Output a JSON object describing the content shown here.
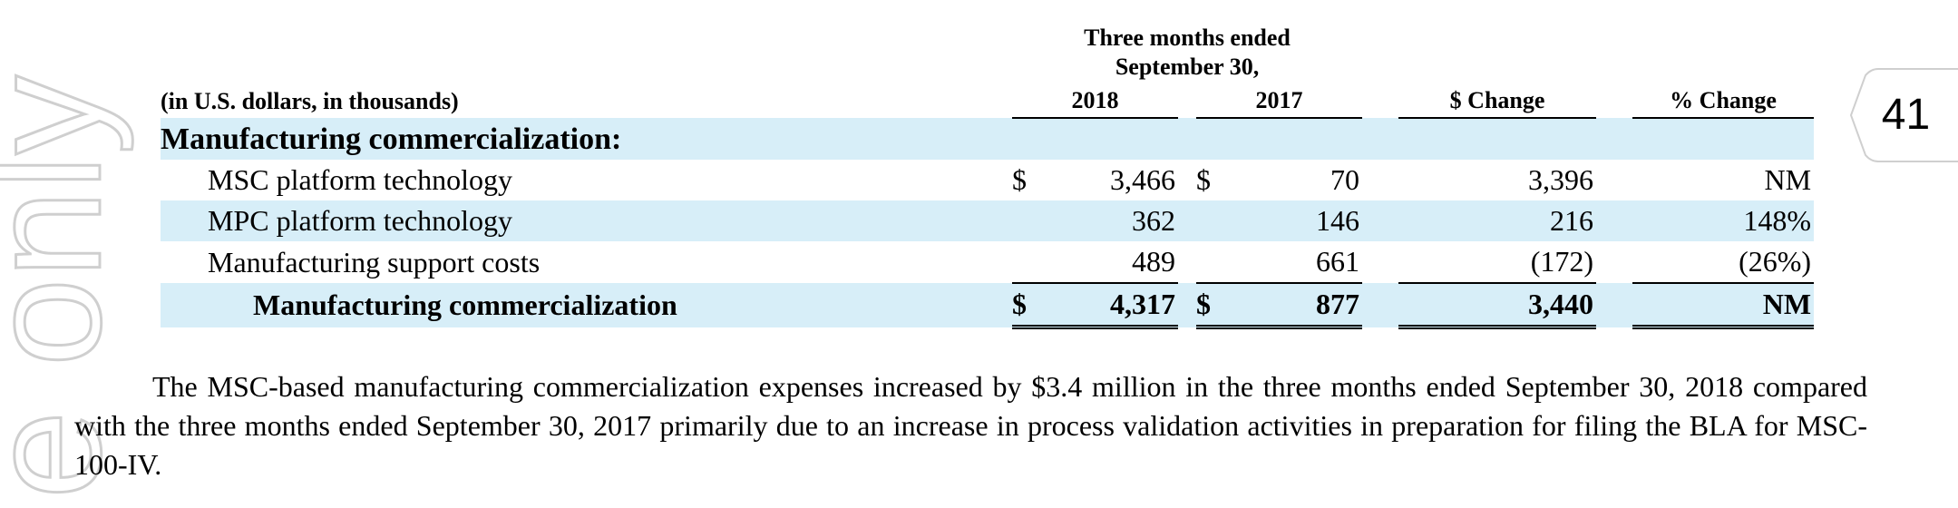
{
  "page_number": "41",
  "watermark_text": "e only",
  "table": {
    "header_group": [
      "Three months ended",
      "September 30,"
    ],
    "units_label": "(in U.S. dollars, in thousands)",
    "columns": [
      "2018",
      "2017",
      "$ Change",
      "% Change"
    ],
    "section_title": "Manufacturing commercialization:",
    "rows": [
      {
        "label": "MSC platform technology",
        "cur1": "$",
        "v2018": "3,466",
        "cur2": "$",
        "v2017": "70",
        "change": "3,396",
        "pct": "NM"
      },
      {
        "label": "MPC platform technology",
        "cur1": "",
        "v2018": "362",
        "cur2": "",
        "v2017": "146",
        "change": "216",
        "pct": "148%"
      },
      {
        "label": "Manufacturing support costs",
        "cur1": "",
        "v2018": "489",
        "cur2": "",
        "v2017": "661",
        "change": "(172)",
        "pct": "(26%)"
      }
    ],
    "total": {
      "label": "Manufacturing commercialization",
      "cur1": "$",
      "v2018": "4,317",
      "cur2": "$",
      "v2017": "877",
      "change": "3,440",
      "pct": "NM"
    }
  },
  "paragraph": "The MSC-based manufacturing commercialization expenses increased by $3.4 million in the three months ended September 30, 2018 compared with the three months ended September 30, 2017 primarily due to an increase in process validation activities in preparation for filing the BLA for MSC-100-IV.",
  "colors": {
    "row_shade": "#d7eef8",
    "watermark": "#cfcfcf"
  }
}
